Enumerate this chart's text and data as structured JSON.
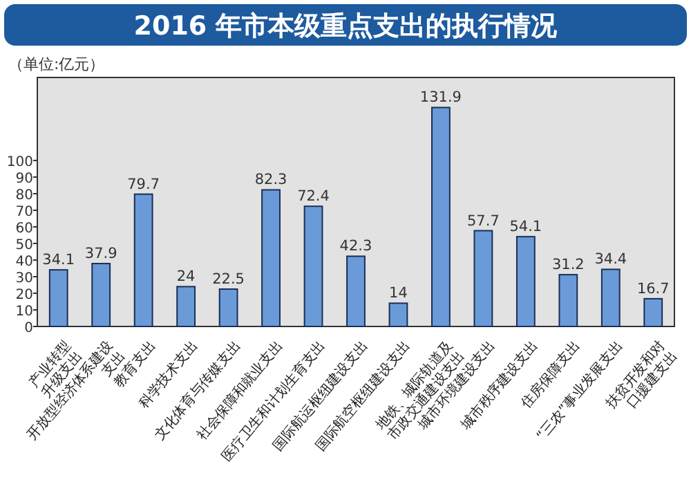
{
  "chart_data": {
    "type": "bar",
    "title": "2016 年市本级重点支出的执行情况",
    "ylabel": "（单位:亿元）",
    "categories": [
      "产业转型\n升级支出",
      "开放型经济体系建设\n支出",
      "教育支出",
      "科学技术支出",
      "文化体育与传媒支出",
      "社会保障和就业支出",
      "医疗卫生和计划生育支出",
      "国际航运枢纽建设支出",
      "国际航空枢纽建设支出",
      "地铁、城际轨道及\n市政交通建设支出",
      "城市环境建设支出",
      "城市秩序建设支出",
      "住房保障支出",
      "“三农”事业发展支出",
      "扶贫开发和对\n口援建支出"
    ],
    "values": [
      34.1,
      37.9,
      79.7,
      24,
      22.5,
      82.3,
      72.4,
      42.3,
      14,
      131.9,
      57.7,
      54.1,
      31.2,
      34.4,
      16.7
    ],
    "color": "#6a9bd8",
    "data_labels": true,
    "ylim": [
      0,
      150
    ],
    "yticks": [
      0,
      10,
      20,
      30,
      40,
      50,
      60,
      70,
      80,
      90,
      100
    ],
    "grid": false
  }
}
